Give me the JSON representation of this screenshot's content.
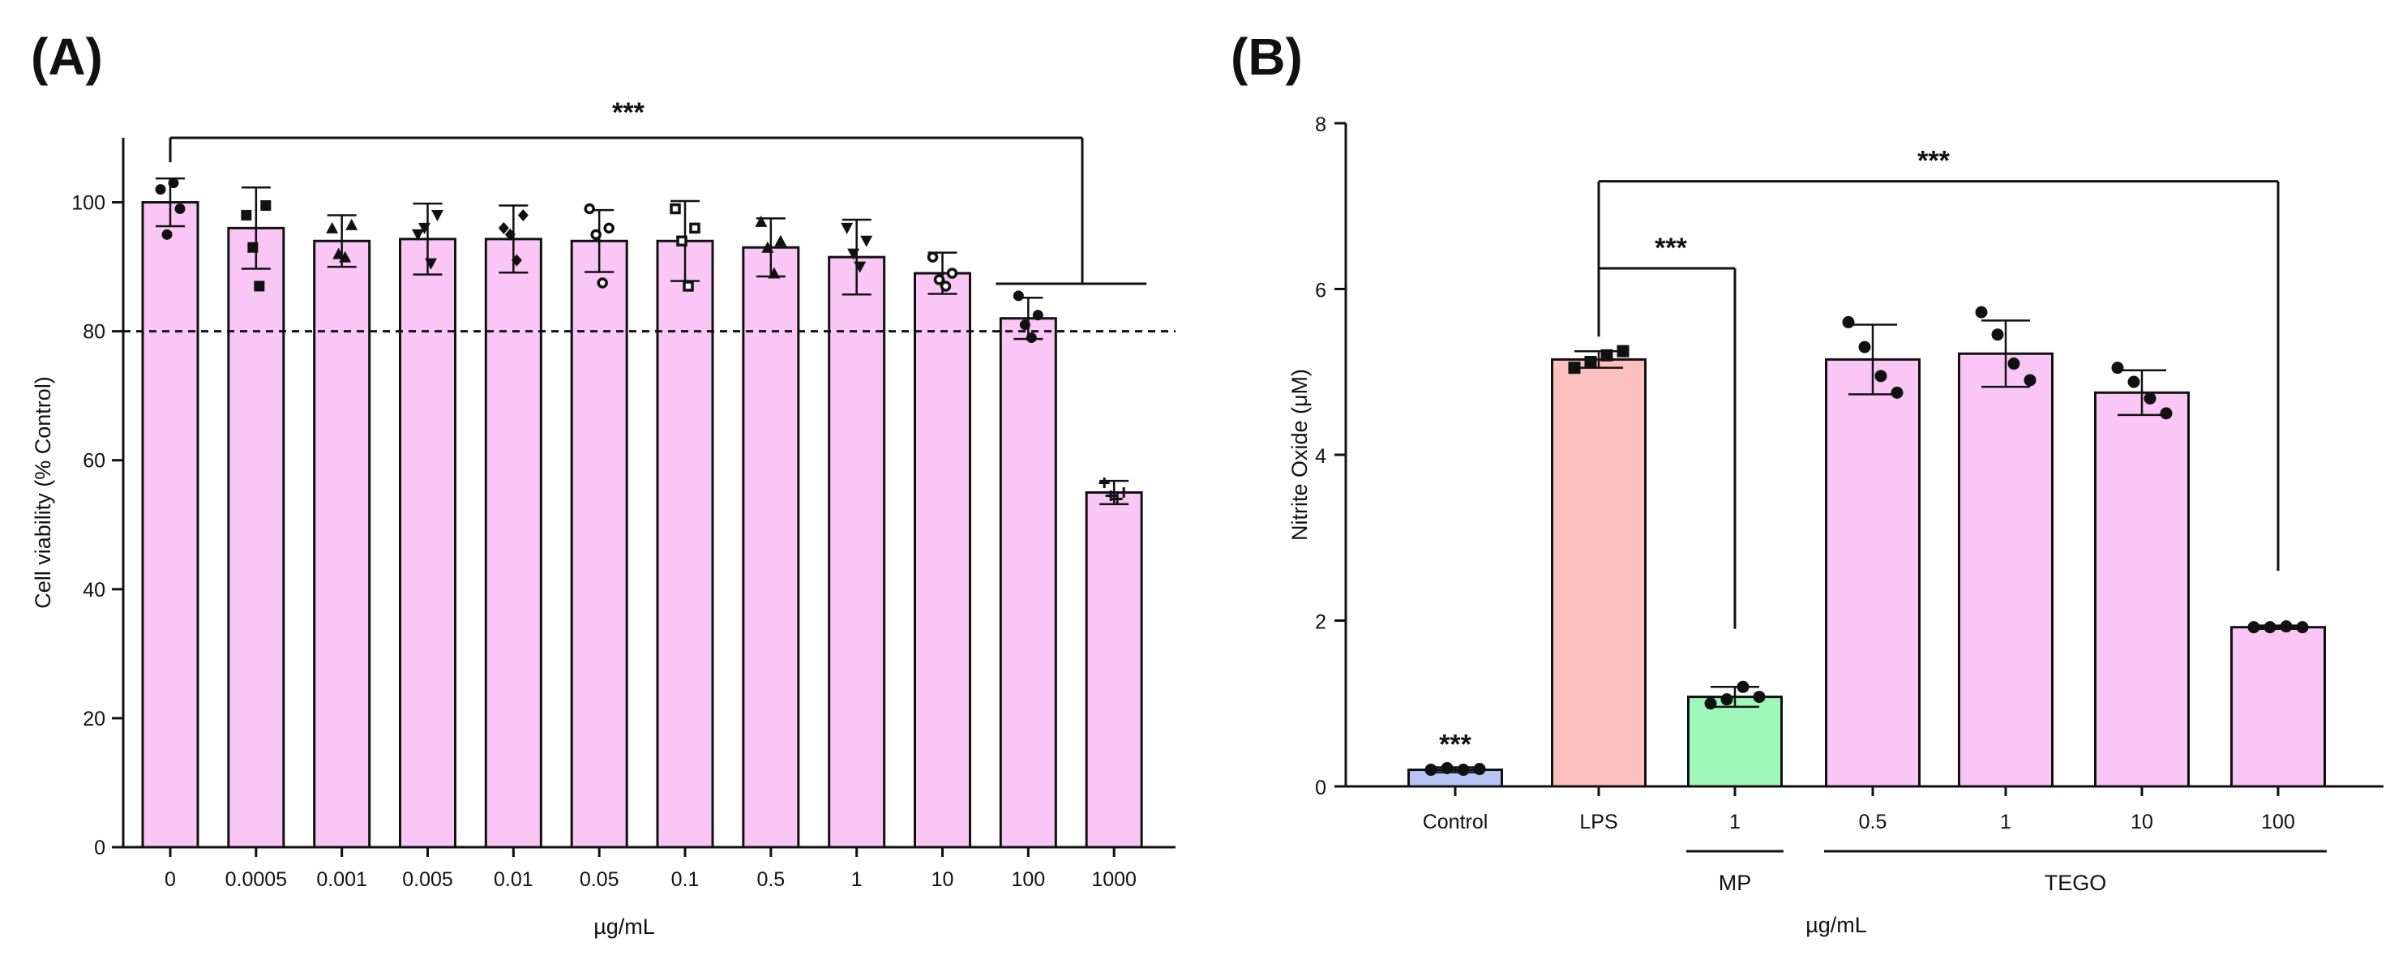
{
  "chart_data": [
    {
      "type": "bar",
      "panel": "(A)",
      "title": "",
      "xlabel": "µg/mL",
      "ylabel": "Cell viability (% Control)",
      "ylim": [
        0,
        110
      ],
      "yticks": [
        0,
        20,
        40,
        60,
        80,
        100
      ],
      "categories": [
        "0",
        "0.0005",
        "0.001",
        "0.005",
        "0.01",
        "0.05",
        "0.1",
        "0.5",
        "1",
        "10",
        "100",
        "1000"
      ],
      "values": [
        100,
        96,
        94,
        94.3,
        94.3,
        94,
        94,
        93,
        91.5,
        89,
        82,
        55
      ],
      "errors": [
        3.7,
        6.3,
        4,
        5.5,
        5.2,
        4.8,
        6.2,
        4.5,
        5.8,
        3.2,
        3.2,
        1.8
      ],
      "points": [
        [
          102,
          99,
          95,
          103
        ],
        [
          98,
          99.5,
          93,
          87
        ],
        [
          96,
          96.5,
          92,
          91.5
        ],
        [
          95,
          98,
          96,
          90.5
        ],
        [
          96,
          98,
          95,
          91
        ],
        [
          99,
          96,
          95,
          87.5
        ],
        [
          99,
          96,
          94,
          87
        ],
        [
          97,
          94,
          93,
          89
        ],
        [
          96,
          94,
          92,
          90
        ],
        [
          91.5,
          89,
          88,
          87
        ],
        [
          85.5,
          82.5,
          81,
          79
        ],
        [
          56.5,
          55,
          54.5,
          54
        ]
      ],
      "markers": [
        "circle",
        "square",
        "triangle",
        "triangle-down",
        "diamond",
        "ring",
        "square-open",
        "triangle",
        "triangle-down",
        "ring",
        "circle",
        "cross"
      ],
      "reference_line": 80,
      "bar_color": "#f9c6f6",
      "annotations": [
        {
          "text": "***",
          "from": "0",
          "to": "bracket"
        }
      ]
    },
    {
      "type": "bar",
      "panel": "(B)",
      "title": "",
      "xlabel": "µg/mL",
      "ylabel": "Nitrite Oxide (μM)",
      "ylim": [
        0,
        8
      ],
      "yticks": [
        0,
        2,
        4,
        6,
        8
      ],
      "categories": [
        "Control",
        "LPS",
        "1",
        "0.5",
        "1",
        "10",
        "100"
      ],
      "values": [
        0.2,
        5.15,
        1.08,
        5.15,
        5.22,
        4.75,
        1.92
      ],
      "errors": [
        0.03,
        0.1,
        0.12,
        0.42,
        0.4,
        0.27,
        0.02
      ],
      "colors": [
        "#b8c4f6",
        "#fdc0c0",
        "#9ff7b9",
        "#f9c6f6",
        "#f9c6f6",
        "#f9c6f6",
        "#f9c6f6"
      ],
      "points": [
        [
          0.2,
          0.22,
          0.2,
          0.21
        ],
        [
          5.05,
          5.12,
          5.2,
          5.25
        ],
        [
          1.0,
          1.05,
          1.2,
          1.08
        ],
        [
          5.6,
          5.3,
          4.95,
          4.75
        ],
        [
          5.72,
          5.45,
          5.1,
          4.9
        ],
        [
          5.05,
          4.88,
          4.68,
          4.5
        ],
        [
          1.92,
          1.92,
          1.93,
          1.92
        ]
      ],
      "groups": [
        {
          "label": "MP",
          "from": 2,
          "to": 2
        },
        {
          "label": "TEGO",
          "from": 3,
          "to": 6
        }
      ],
      "annotations": [
        {
          "text": "***",
          "on": "Control"
        },
        {
          "text": "***",
          "from": "LPS",
          "to": "MP 1"
        },
        {
          "text": "***",
          "from": "LPS",
          "to": "TEGO 100"
        }
      ]
    }
  ]
}
